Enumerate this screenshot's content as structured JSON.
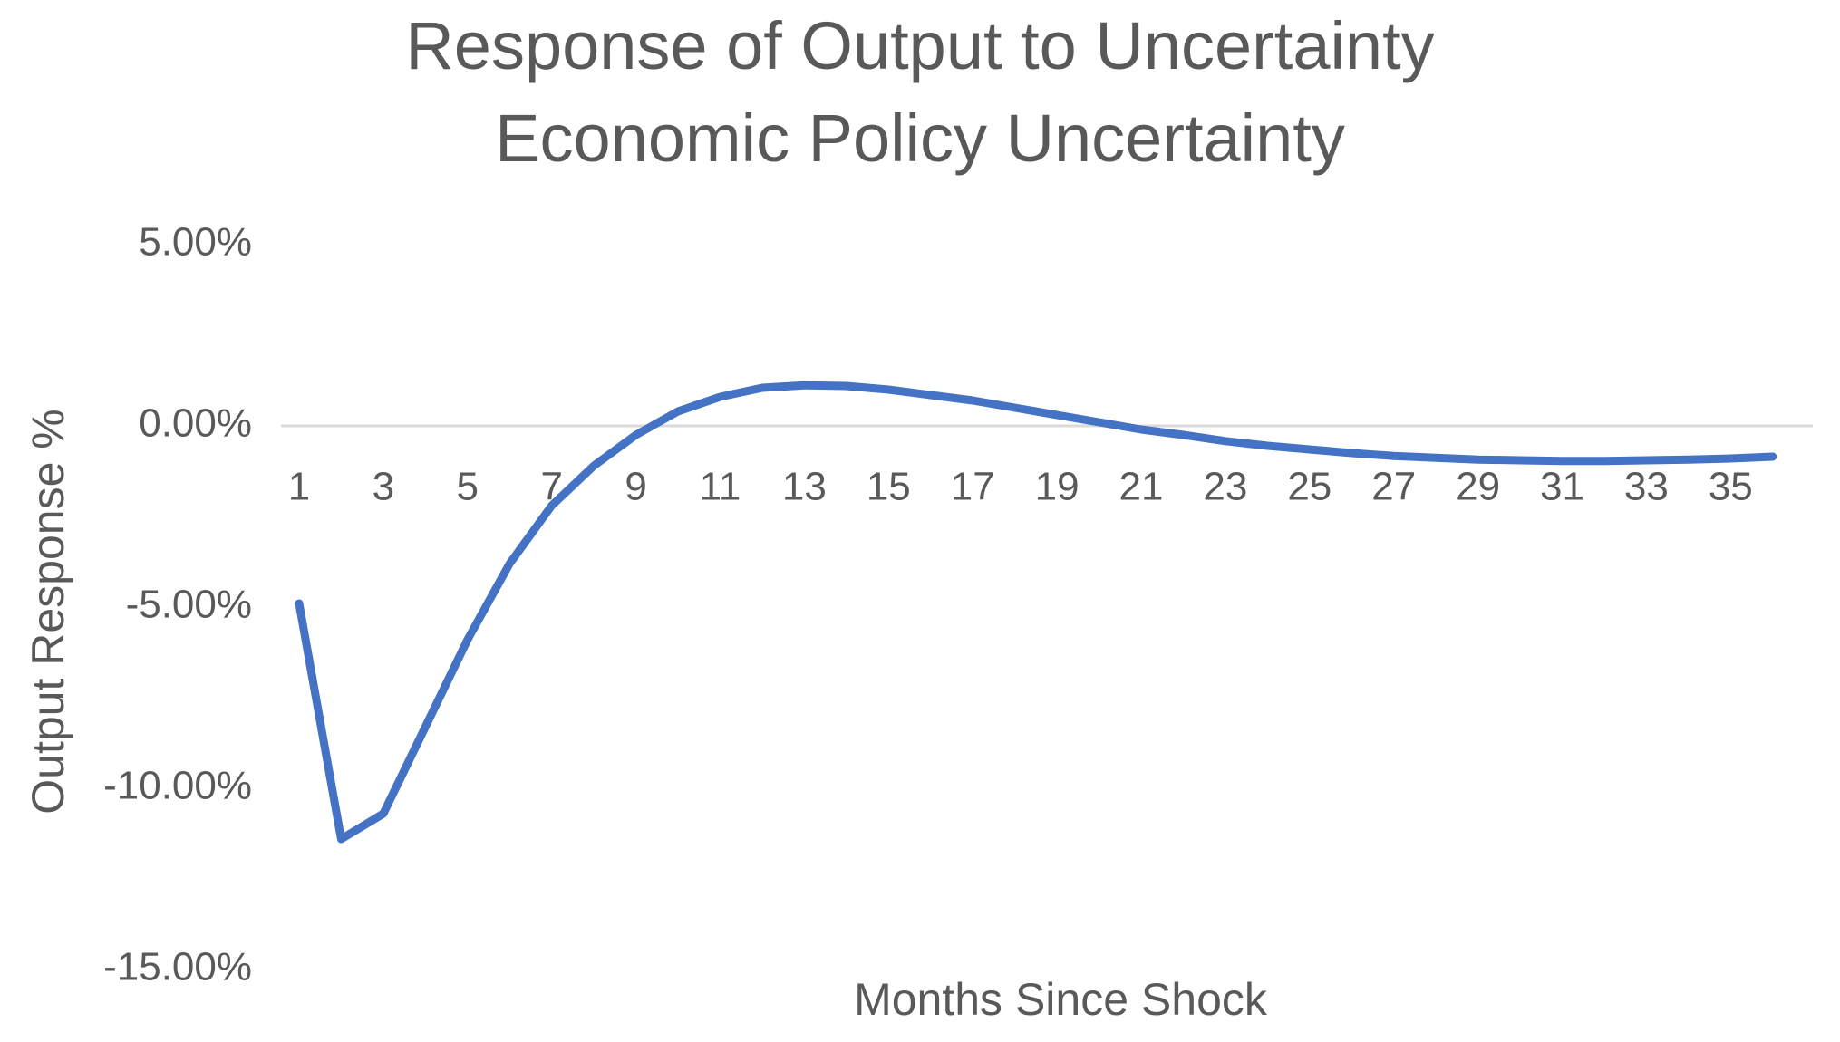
{
  "chart_data": {
    "type": "line",
    "title": "Response of Output to Uncertainty",
    "subtitle": "Economic Policy Uncertainty",
    "xlabel": "Months Since Shock",
    "ylabel": "Output Response %",
    "ylim": [
      -15,
      5
    ],
    "yticks": [
      5,
      0,
      -5,
      -10,
      -15
    ],
    "ytick_labels": [
      "5.00%",
      "0.00%",
      "-5.00%",
      "-10.00%",
      "-15.00%"
    ],
    "xtick_labels": [
      "1",
      "3",
      "5",
      "7",
      "9",
      "11",
      "13",
      "15",
      "17",
      "19",
      "21",
      "23",
      "25",
      "27",
      "29",
      "31",
      "33",
      "35"
    ],
    "grid": false,
    "legend": "none",
    "series": [
      {
        "color": "#4472C4",
        "x": [
          1,
          2,
          3,
          4,
          5,
          6,
          7,
          8,
          9,
          10,
          11,
          12,
          13,
          14,
          15,
          16,
          17,
          18,
          19,
          20,
          21,
          22,
          23,
          24,
          25,
          26,
          27,
          28,
          29,
          30,
          31,
          32,
          33,
          34,
          35,
          36
        ],
        "values": [
          -4.9,
          -11.4,
          -10.7,
          -8.3,
          -5.9,
          -3.8,
          -2.2,
          -1.1,
          -0.25,
          0.4,
          0.8,
          1.05,
          1.12,
          1.1,
          1.0,
          0.85,
          0.7,
          0.5,
          0.3,
          0.1,
          -0.1,
          -0.25,
          -0.42,
          -0.55,
          -0.65,
          -0.75,
          -0.83,
          -0.88,
          -0.93,
          -0.95,
          -0.97,
          -0.97,
          -0.95,
          -0.93,
          -0.9,
          -0.85
        ]
      }
    ]
  }
}
